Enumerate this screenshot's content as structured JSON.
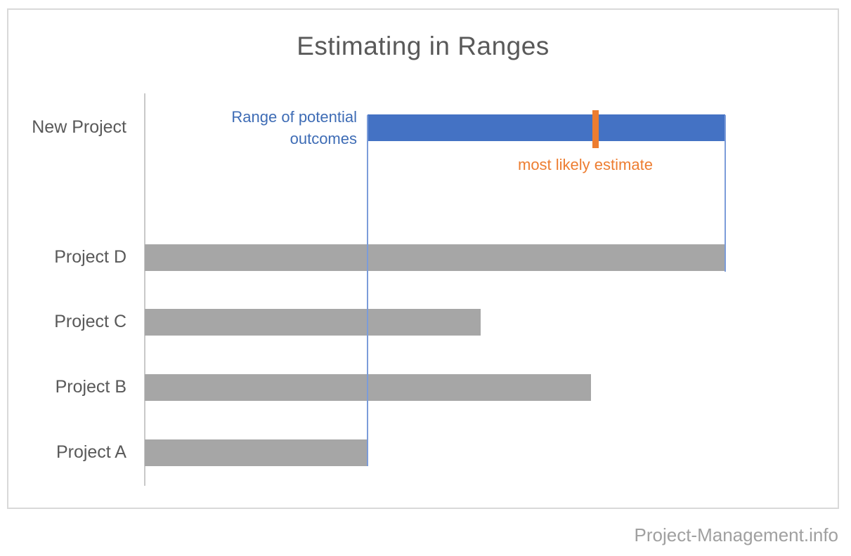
{
  "page": {
    "title": "Estimating in Ranges",
    "footer_credit": "Project-Management.info"
  },
  "annotations": {
    "range_label_line1": "Range of potential",
    "range_label_line2": "outcomes",
    "most_likely_label": "most likely estimate"
  },
  "colors": {
    "range_bar_blue": "#4472C4",
    "completed_bar_gray": "#A6A6A6",
    "most_likely_orange": "#ED7D31",
    "guide_line_blue": "#7C9CD9",
    "title_gray": "#595959",
    "axis_gray": "#C9C9C9",
    "frame_border_gray": "#D9D9D9",
    "footer_gray": "#A0A0A0"
  },
  "chart_data": {
    "type": "bar",
    "orientation": "horizontal",
    "title": "Estimating in Ranges",
    "xlabel": "",
    "ylabel": "",
    "value_axis": {
      "visible": false,
      "gridlines": false,
      "units": "unlabeled; values normalized so Project D = 100"
    },
    "legend": "none",
    "categories": [
      "New Project",
      "Project D",
      "Project C",
      "Project B",
      "Project A"
    ],
    "bars": [
      {
        "category": "New Project",
        "kind": "range",
        "start": 38.4,
        "end": 100,
        "most_likely": 77.7,
        "color": "#4472C4"
      },
      {
        "category": "Project D",
        "kind": "value",
        "start": 0,
        "end": 100,
        "color": "#A6A6A6"
      },
      {
        "category": "Project C",
        "kind": "value",
        "start": 0,
        "end": 57.9,
        "color": "#A6A6A6"
      },
      {
        "category": "Project B",
        "kind": "value",
        "start": 0,
        "end": 76.9,
        "color": "#A6A6A6"
      },
      {
        "category": "Project A",
        "kind": "value",
        "start": 0,
        "end": 38.4,
        "color": "#A6A6A6"
      }
    ],
    "annotations": [
      {
        "text": "Range of potential outcomes",
        "color": "#3E6CB5",
        "refers_to": "New Project range bar"
      },
      {
        "text": "most likely estimate",
        "color": "#ED7D31",
        "refers_to": "orange tick on New Project bar"
      }
    ],
    "notes": "Guide lines drop from both ends of the New Project range bar down to the bars of Project A (low end) and Project D (high end)."
  }
}
